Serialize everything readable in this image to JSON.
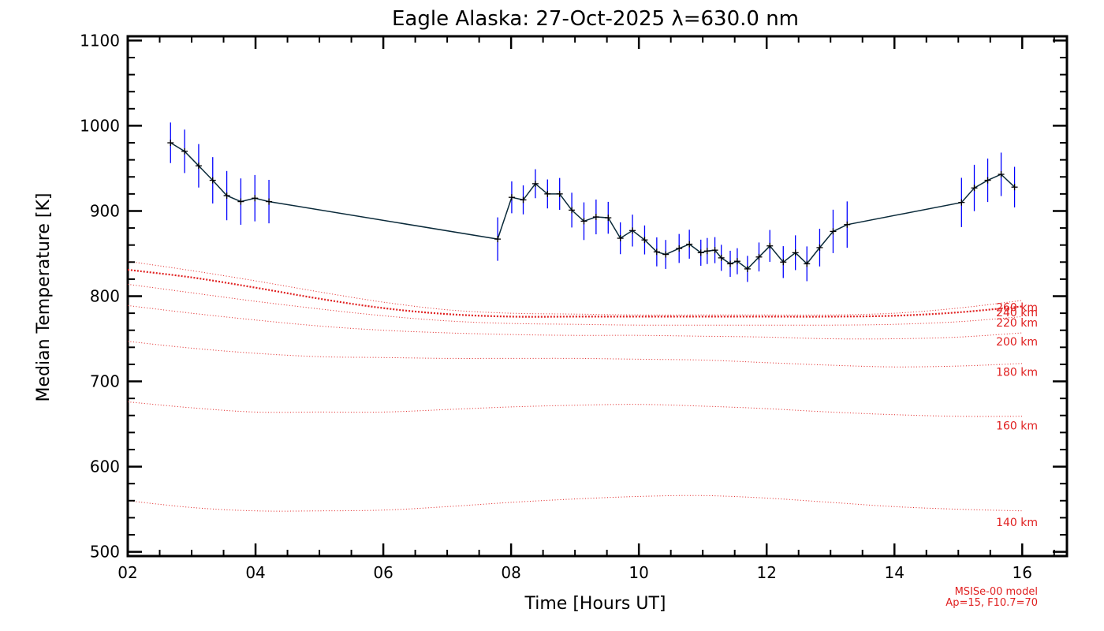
{
  "chart_data": {
    "type": "line",
    "title": "Eagle Alaska: 27-Oct-2025 λ=630.0 nm",
    "xlabel": "Time [Hours UT]",
    "ylabel": "Median Temperature [K]",
    "xlim": [
      2,
      16.7
    ],
    "ylim": [
      495,
      1105
    ],
    "xticks": [
      2,
      4,
      6,
      8,
      10,
      12,
      14,
      16
    ],
    "xtick_labels": [
      "02",
      "04",
      "06",
      "08",
      "10",
      "12",
      "14",
      "16"
    ],
    "yticks": [
      500,
      600,
      700,
      800,
      900,
      1000,
      1100
    ],
    "ytick_labels": [
      "500",
      "600",
      "700",
      "800",
      "900",
      "1000",
      "1100"
    ],
    "measurements": {
      "name": "Median Temperature",
      "color": "#000000",
      "errorbar_color": "#0000ff",
      "x": [
        2.67,
        2.89,
        3.11,
        3.33,
        3.55,
        3.77,
        3.99,
        4.21,
        7.79,
        8.01,
        8.19,
        8.38,
        8.57,
        8.76,
        8.95,
        9.14,
        9.33,
        9.52,
        9.71,
        9.9,
        10.09,
        10.28,
        10.42,
        10.63,
        10.79,
        10.97,
        11.07,
        11.19,
        11.29,
        11.43,
        11.54,
        11.7,
        11.88,
        12.05,
        12.26,
        12.45,
        12.63,
        12.83,
        13.04,
        13.26,
        15.05,
        15.25,
        15.46,
        15.67,
        15.88
      ],
      "y": [
        980,
        970,
        953,
        936,
        918,
        911,
        915,
        911,
        867,
        916,
        913,
        932,
        920,
        920,
        901,
        888,
        893,
        892,
        868,
        877,
        866,
        852,
        849,
        856,
        861,
        851,
        853,
        854,
        845,
        838,
        841,
        832,
        846,
        859,
        840,
        851,
        838,
        857,
        876,
        884,
        910,
        927,
        936,
        943,
        928
      ],
      "err": [
        14,
        15,
        15,
        16,
        17,
        16,
        16,
        15,
        15,
        11,
        10,
        10,
        10,
        11,
        12,
        13,
        12,
        11,
        11,
        11,
        10,
        10,
        10,
        10,
        10,
        9,
        9,
        9,
        9,
        9,
        9,
        9,
        10,
        11,
        11,
        12,
        12,
        13,
        15,
        16,
        17,
        16,
        15,
        15,
        14
      ]
    },
    "model_series": [
      {
        "name": "140 km",
        "x": [
          2,
          3,
          4,
          5,
          6,
          7,
          8,
          9,
          10,
          11,
          12,
          13,
          14,
          15,
          16
        ],
        "values": [
          560,
          552,
          548,
          548,
          549,
          553,
          558,
          562,
          565,
          566,
          563,
          558,
          553,
          550,
          548
        ]
      },
      {
        "name": "160 km",
        "x": [
          2,
          3,
          4,
          5,
          6,
          7,
          8,
          9,
          10,
          11,
          12,
          13,
          14,
          15,
          16
        ],
        "values": [
          676,
          669,
          664,
          664,
          664,
          667,
          670,
          672,
          673,
          671,
          668,
          664,
          661,
          659,
          659
        ]
      },
      {
        "name": "180 km",
        "x": [
          2,
          3,
          4,
          5,
          6,
          7,
          8,
          9,
          10,
          11,
          12,
          13,
          14,
          15,
          16
        ],
        "values": [
          747,
          739,
          733,
          729,
          728,
          727,
          727,
          727,
          726,
          725,
          722,
          719,
          717,
          718,
          721
        ]
      },
      {
        "name": "200 km",
        "x": [
          2,
          3,
          4,
          5,
          6,
          7,
          8,
          9,
          10,
          11,
          12,
          13,
          14,
          15,
          16
        ],
        "values": [
          789,
          780,
          772,
          765,
          760,
          757,
          755,
          754,
          754,
          753,
          752,
          750,
          750,
          752,
          757
        ]
      },
      {
        "name": "220 km",
        "x": [
          2,
          3,
          4,
          5,
          6,
          7,
          8,
          9,
          10,
          11,
          12,
          13,
          14,
          15,
          16
        ],
        "values": [
          814,
          804,
          794,
          785,
          777,
          771,
          768,
          767,
          766,
          766,
          766,
          766,
          767,
          770,
          776
        ]
      },
      {
        "name": "240 km",
        "x": [
          2,
          3,
          4,
          5,
          6,
          7,
          8,
          9,
          10,
          11,
          12,
          13,
          14,
          15,
          16
        ],
        "values": [
          831,
          822,
          810,
          797,
          786,
          779,
          776,
          776,
          776,
          776,
          776,
          776,
          777,
          781,
          788
        ]
      },
      {
        "name": "260 km",
        "x": [
          2,
          3,
          4,
          5,
          6,
          7,
          8,
          9,
          10,
          11,
          12,
          13,
          14,
          15,
          16
        ],
        "values": [
          841,
          830,
          818,
          805,
          793,
          784,
          780,
          779,
          778,
          778,
          778,
          778,
          780,
          786,
          795
        ]
      }
    ],
    "model_label_list": [
      {
        "text": "140 km",
        "y": 535
      },
      {
        "text": "160 km",
        "y": 648
      },
      {
        "text": "180 km",
        "y": 711
      },
      {
        "text": "200 km",
        "y": 747
      },
      {
        "text": "220 km",
        "y": 769
      },
      {
        "text": "240 km",
        "y": 781
      },
      {
        "text": "260 km",
        "y": 787
      }
    ],
    "model_note": [
      "MSISe-00 model",
      "Ap=15, F10.7=70"
    ],
    "model_color": "#e02020",
    "grid": false
  }
}
